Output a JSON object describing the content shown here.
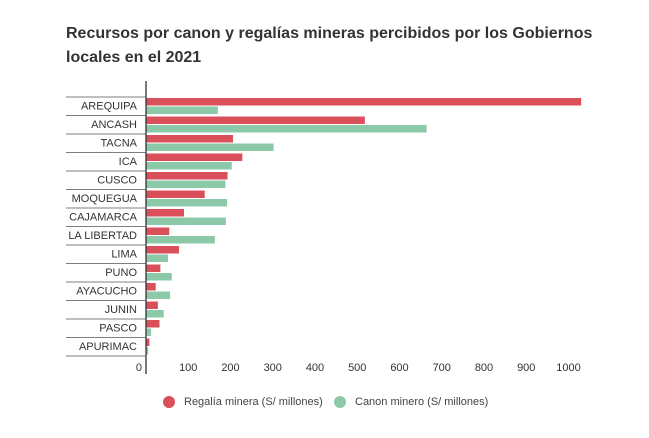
{
  "title": "Recursos por canon y regalías mineras percibidos por los Gobiernos locales en el 2021",
  "chart_data": {
    "type": "bar",
    "orientation": "horizontal",
    "title": "Recursos por canon y regalías mineras percibidos por los Gobiernos locales en el 2021",
    "categories": [
      "AREQUIPA",
      "ANCASH",
      "TACNA",
      "ICA",
      "CUSCO",
      "MOQUEGUA",
      "CAJAMARCA",
      "LA LIBERTAD",
      "LIMA",
      "PUNO",
      "AYACUCHO",
      "JUNIN",
      "PASCO",
      "APURIMAC"
    ],
    "series": [
      {
        "name": "Regalía minera (S/ millones)",
        "color": "#d9505a",
        "values": [
          1030,
          518,
          206,
          228,
          193,
          139,
          90,
          55,
          78,
          34,
          23,
          28,
          32,
          8
        ]
      },
      {
        "name": "Canon minero (S/ millones)",
        "color": "#8cc9a9",
        "values": [
          170,
          664,
          302,
          203,
          188,
          192,
          189,
          163,
          52,
          61,
          57,
          42,
          12,
          5
        ]
      }
    ],
    "x_ticks": [
      0,
      100,
      200,
      300,
      400,
      500,
      600,
      700,
      800,
      900,
      1000
    ],
    "xlim": [
      0,
      1035
    ],
    "grid": false,
    "legend_position": "bottom"
  }
}
